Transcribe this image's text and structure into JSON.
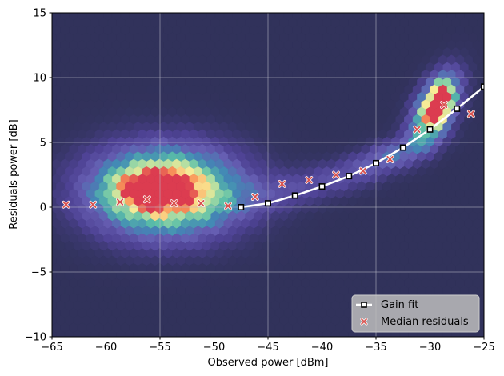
{
  "chart_data": {
    "type": "scatter",
    "xlabel": "Observed power [dBm]",
    "ylabel": "Residuals power [dB]",
    "xlim": [
      -65,
      -25
    ],
    "ylim": [
      -10,
      15
    ],
    "xticks": [
      -65,
      -60,
      -55,
      -50,
      -45,
      -40,
      -35,
      -30,
      -25
    ],
    "yticks": [
      -10,
      -5,
      0,
      5,
      10,
      15
    ],
    "xtick_labels": [
      "−65",
      "−60",
      "−55",
      "−50",
      "−45",
      "−40",
      "−35",
      "−30",
      "−25"
    ],
    "ytick_labels": [
      "−10",
      "−5",
      "0",
      "5",
      "10",
      "15"
    ],
    "grid": true,
    "background": "hexbin density heatmap",
    "legend_position": "lower-right",
    "series": [
      {
        "name": "Gain fit",
        "type": "line",
        "marker": "square",
        "color": "#ffffff",
        "marker_edge": "#000000",
        "x": [
          -47.5,
          -45.0,
          -42.5,
          -40.0,
          -37.5,
          -35.0,
          -32.5,
          -30.0,
          -27.5,
          -25.0
        ],
        "y": [
          0.0,
          0.3,
          0.9,
          1.6,
          2.4,
          3.4,
          4.6,
          6.0,
          7.6,
          9.3
        ]
      },
      {
        "name": "Median residuals",
        "type": "scatter",
        "marker": "x",
        "color": "#d9534f",
        "x": [
          -63.7,
          -61.2,
          -58.7,
          -56.2,
          -53.7,
          -51.2,
          -48.7,
          -46.2,
          -43.7,
          -41.2,
          -38.7,
          -36.2,
          -33.7,
          -31.2,
          -28.7,
          -26.2
        ],
        "y": [
          0.2,
          0.2,
          0.4,
          0.6,
          0.3,
          0.3,
          0.1,
          0.8,
          1.8,
          2.1,
          2.5,
          2.8,
          3.7,
          6.0,
          7.9,
          7.2
        ]
      }
    ],
    "density_clusters": [
      {
        "cx": -54.5,
        "cy": 1.2,
        "sx": 4.5,
        "sy": 2.2,
        "w": 1.0,
        "rho": 0.0
      },
      {
        "cx": -55.5,
        "cy": 1.4,
        "sx": 2.2,
        "sy": 0.9,
        "w": 0.55,
        "rho": 0.0
      },
      {
        "cx": -29.5,
        "cy": 7.6,
        "sx": 1.4,
        "sy": 1.7,
        "w": 0.95,
        "rho": 0.5
      },
      {
        "cx": -29.0,
        "cy": 8.2,
        "sx": 0.7,
        "sy": 1.0,
        "w": 0.45,
        "rho": 0.3
      },
      {
        "cx": -33.5,
        "cy": 4.0,
        "sx": 2.5,
        "sy": 1.0,
        "w": 0.3,
        "rho": 0.6
      },
      {
        "cx": -39.0,
        "cy": 2.2,
        "sx": 3.0,
        "sy": 1.0,
        "w": 0.16,
        "rho": 0.4
      },
      {
        "cx": -45.0,
        "cy": 1.0,
        "sx": 3.0,
        "sy": 1.0,
        "w": 0.12,
        "rho": 0.2
      }
    ]
  }
}
